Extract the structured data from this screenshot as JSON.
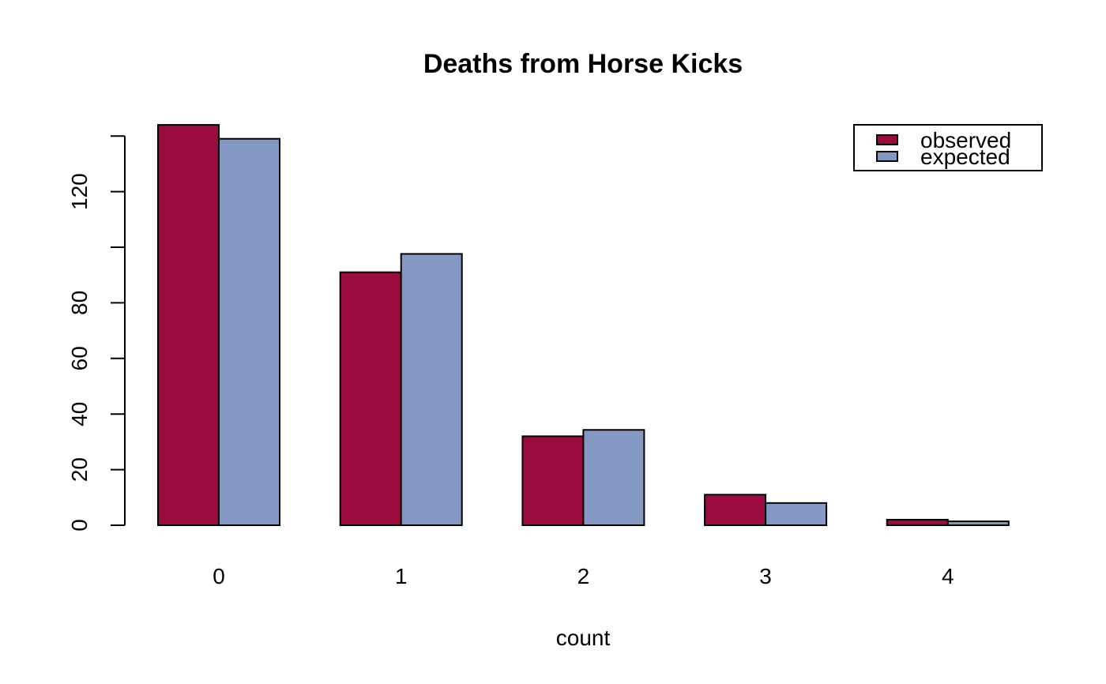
{
  "chart_data": {
    "type": "bar",
    "title": "Deaths from Horse Kicks",
    "xlabel": "count",
    "ylabel": "",
    "categories": [
      "0",
      "1",
      "2",
      "3",
      "4"
    ],
    "series": [
      {
        "name": "observed",
        "color": "#9B0B40",
        "values": [
          144,
          91,
          32,
          11,
          2
        ]
      },
      {
        "name": "expected",
        "color": "#8498C4",
        "values": [
          139.0,
          97.6,
          34.3,
          8.0,
          1.4
        ]
      }
    ],
    "ylim": [
      0,
      144
    ],
    "yticks": [
      0,
      20,
      40,
      60,
      80,
      100,
      120,
      140
    ],
    "ytick_labels": [
      "0",
      "20",
      "40",
      "60",
      "80",
      "",
      "120",
      ""
    ],
    "legend_position": "top-right",
    "grid": false
  }
}
